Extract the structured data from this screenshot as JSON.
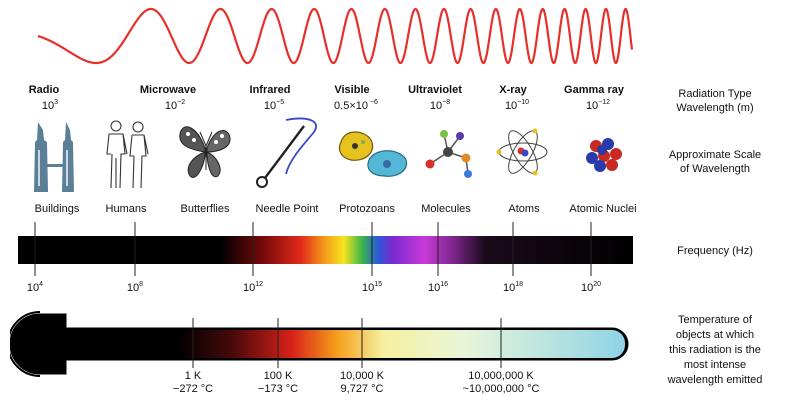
{
  "radiation_types": [
    {
      "name": "Radio",
      "wl_base": "10",
      "wl_exp": "3"
    },
    {
      "name": "Microwave",
      "wl_base": "10",
      "wl_exp": "−2"
    },
    {
      "name": "Infrared",
      "wl_base": "10",
      "wl_exp": "−5"
    },
    {
      "name": "Visible",
      "wl_base": "0.5×10",
      "wl_exp": " −6"
    },
    {
      "name": "Ultraviolet",
      "wl_base": "10",
      "wl_exp": "−8"
    },
    {
      "name": "X-ray",
      "wl_base": "10",
      "wl_exp": "−10"
    },
    {
      "name": "Gamma ray",
      "wl_base": "10",
      "wl_exp": "−12"
    }
  ],
  "scale_objects": [
    "Buildings",
    "Humans",
    "Butterflies",
    "Needle Point",
    "Protozoans",
    "Molecules",
    "Atoms",
    "Atomic Nuclei"
  ],
  "frequency_ticks": [
    {
      "base": "10",
      "exp": "4"
    },
    {
      "base": "10",
      "exp": "8"
    },
    {
      "base": "10",
      "exp": "12"
    },
    {
      "base": "10",
      "exp": "15"
    },
    {
      "base": "10",
      "exp": "16"
    },
    {
      "base": "10",
      "exp": "18"
    },
    {
      "base": "10",
      "exp": "20"
    }
  ],
  "temperature_ticks": [
    {
      "kelvin": "1 K",
      "celsius": "−272 °C"
    },
    {
      "kelvin": "100 K",
      "celsius": "−173 °C"
    },
    {
      "kelvin": "10,000 K",
      "celsius": "9,727 °C"
    },
    {
      "kelvin": "10,000,000 K",
      "celsius": "~10,000,000 °C"
    }
  ],
  "labels": {
    "radiation_type": "Radiation Type",
    "wavelength": "Wavelength (m)",
    "scale_line1": "Approximate Scale",
    "scale_line2": "of Wavelength",
    "frequency": "Frequency (Hz)",
    "temp_line1": "Temperature of",
    "temp_line2": "objects at which",
    "temp_line3": "this radiation is the",
    "temp_line4": "most intense",
    "temp_line5": "wavelength emitted"
  },
  "colors": {
    "wave": "#e8302a",
    "bar": "#000000",
    "building": "#5a7f96",
    "thermo_end": "#8fd3e6"
  }
}
